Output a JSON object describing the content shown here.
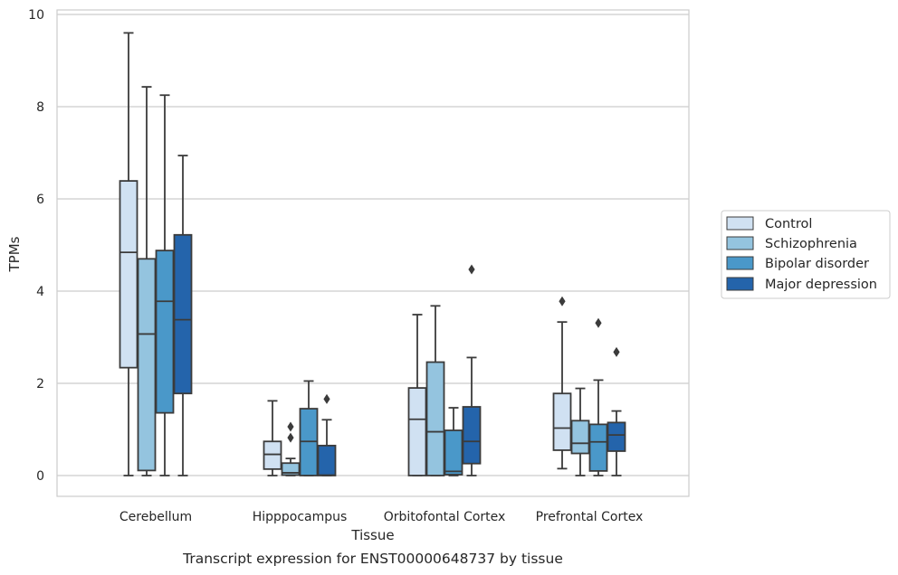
{
  "chart_data": {
    "type": "box",
    "title": "Transcript expression for ENST00000648737 by tissue",
    "xlabel": "Tissue",
    "ylabel": "TPMs",
    "ylim": [
      -0.45,
      10.1
    ],
    "yticks": [
      0,
      2,
      4,
      6,
      8,
      10
    ],
    "grid": "horizontal",
    "legend_position": "outside-right",
    "categories": [
      "Cerebellum",
      "Hipppocampus",
      "Orbitofontal Cortex",
      "Prefrontal Cortex"
    ],
    "series": [
      {
        "name": "Control",
        "color": "#d0e1f2",
        "boxes": [
          {
            "whislo": 0.0,
            "q1": 2.34,
            "med": 4.84,
            "q3": 6.39,
            "whishi": 9.6,
            "fliers": []
          },
          {
            "whislo": 0.0,
            "q1": 0.14,
            "med": 0.46,
            "q3": 0.74,
            "whishi": 1.62,
            "fliers": []
          },
          {
            "whislo": 0.0,
            "q1": 0.0,
            "med": 1.22,
            "q3": 1.9,
            "whishi": 3.49,
            "fliers": []
          },
          {
            "whislo": 0.15,
            "q1": 0.55,
            "med": 1.03,
            "q3": 1.78,
            "whishi": 3.33,
            "fliers": [
              3.78
            ]
          }
        ]
      },
      {
        "name": "Schizophrenia",
        "color": "#94c4df",
        "boxes": [
          {
            "whislo": 0.0,
            "q1": 0.11,
            "med": 3.07,
            "q3": 4.7,
            "whishi": 8.43,
            "fliers": []
          },
          {
            "whislo": 0.0,
            "q1": 0.01,
            "med": 0.06,
            "q3": 0.27,
            "whishi": 0.37,
            "fliers": [
              0.82,
              1.06
            ]
          },
          {
            "whislo": 0.0,
            "q1": 0.0,
            "med": 0.95,
            "q3": 2.46,
            "whishi": 3.68,
            "fliers": []
          },
          {
            "whislo": 0.0,
            "q1": 0.48,
            "med": 0.7,
            "q3": 1.19,
            "whishi": 1.89,
            "fliers": []
          }
        ]
      },
      {
        "name": "Bipolar disorder",
        "color": "#4a98c9",
        "boxes": [
          {
            "whislo": 0.0,
            "q1": 1.36,
            "med": 3.78,
            "q3": 4.88,
            "whishi": 8.25,
            "fliers": []
          },
          {
            "whislo": 0.0,
            "q1": 0.0,
            "med": 0.74,
            "q3": 1.45,
            "whishi": 2.05,
            "fliers": []
          },
          {
            "whislo": 0.0,
            "q1": 0.02,
            "med": 0.09,
            "q3": 0.98,
            "whishi": 1.47,
            "fliers": []
          },
          {
            "whislo": 0.0,
            "q1": 0.1,
            "med": 0.73,
            "q3": 1.11,
            "whishi": 2.07,
            "fliers": [
              3.31
            ]
          }
        ]
      },
      {
        "name": "Major depression",
        "color": "#2464ab",
        "boxes": [
          {
            "whislo": 0.0,
            "q1": 1.78,
            "med": 3.38,
            "q3": 5.22,
            "whishi": 6.94,
            "fliers": []
          },
          {
            "whislo": 0.0,
            "q1": 0.0,
            "med": 0.01,
            "q3": 0.65,
            "whishi": 1.21,
            "fliers": [
              1.66
            ]
          },
          {
            "whislo": 0.0,
            "q1": 0.26,
            "med": 0.74,
            "q3": 1.49,
            "whishi": 2.56,
            "fliers": [
              4.47
            ]
          },
          {
            "whislo": 0.0,
            "q1": 0.53,
            "med": 0.88,
            "q3": 1.15,
            "whishi": 1.4,
            "fliers": [
              2.68
            ]
          }
        ]
      }
    ]
  }
}
